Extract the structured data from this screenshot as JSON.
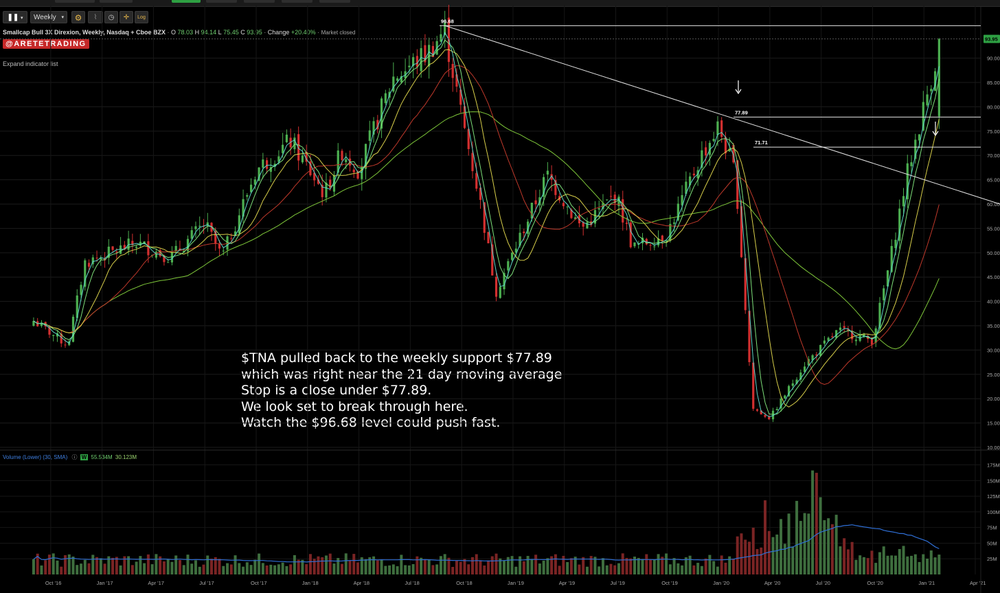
{
  "toolbar": {
    "chart_type_icon": "candlestick-icon",
    "interval": "Weekly",
    "settings_icon": "gear-icon",
    "log_label": "Log"
  },
  "header": {
    "instrument": "Smallcap Bull 3X Direxion, Weekly, Nasdaq + Cboe BZX",
    "open_label": "O",
    "open": "78.03",
    "high_label": "H",
    "high": "94.14",
    "low_label": "L",
    "low": "75.45",
    "close_label": "C",
    "close": "93.95",
    "change_label": "Change",
    "change": "+20.40%",
    "market_status": "Market closed",
    "watermark": "@ARETETRADING",
    "expand_indicators": "Expand indicator list"
  },
  "volume_header": {
    "title": "Volume (Lower) (30, SMA)",
    "badge": "W",
    "value1": "55.534M",
    "value2": "30.123M"
  },
  "annotation": {
    "lines": [
      "$TNA pulled back to the weekly support $77.89",
      "which was right near the 21 day moving average",
      "Stop is a close under $77.89.",
      "We look set to break through here.",
      "Watch the $96.68 level could push fast."
    ]
  },
  "colors": {
    "background": "#000000",
    "up": "#4caf50",
    "down": "#d32f2f",
    "ma_fast": "#5dd3c8",
    "ma_mid": "#7ee07a",
    "ma_yellow": "#d8cf4a",
    "ma_red": "#c0392b",
    "ma_long": "#7fc83a",
    "vol_sma": "#2f6fd6",
    "price_badge": "#2ea043"
  },
  "chart_data": {
    "type": "candlestick",
    "price_axis": {
      "ticks": [
        "10.00",
        "15.00",
        "20.00",
        "25.00",
        "30.00",
        "35.00",
        "40.00",
        "45.00",
        "50.00",
        "55.00",
        "60.00",
        "65.00",
        "70.00",
        "75.00",
        "80.00",
        "85.00",
        "90.00"
      ],
      "range": [
        10,
        98
      ],
      "last_price_badge": "93.95"
    },
    "volume_axis": {
      "ticks": [
        "25M",
        "50M",
        "75M",
        "100M",
        "125M",
        "150M",
        "175M"
      ],
      "range": [
        0,
        180
      ]
    },
    "x_axis_ticks": [
      "Oct '16",
      "Jan '17",
      "Apr '17",
      "Jul '17",
      "Oct '17",
      "Jan '18",
      "Apr '18",
      "Jul '18",
      "Oct '18",
      "Jan '19",
      "Apr '19",
      "Jul '19",
      "Oct '19",
      "Jan '20",
      "Apr '20",
      "Jul '20",
      "Oct '20",
      "Jan '21",
      "Apr '21"
    ],
    "levels": [
      {
        "label": "96.68",
        "value": 96.68
      },
      {
        "label": "77.89",
        "value": 77.89
      },
      {
        "label": "71.71",
        "value": 71.71
      }
    ],
    "trendline": {
      "from": {
        "date": "Sep '18",
        "price": 96.68
      },
      "to": {
        "date": "Apr '21",
        "price": 60.0
      }
    },
    "keypoints": [
      {
        "d": "2016-09",
        "p": 36
      },
      {
        "d": "2016-11",
        "p": 31
      },
      {
        "d": "2016-12",
        "p": 48
      },
      {
        "d": "2017-03",
        "p": 52
      },
      {
        "d": "2017-05",
        "p": 49
      },
      {
        "d": "2017-07",
        "p": 56
      },
      {
        "d": "2017-08",
        "p": 49
      },
      {
        "d": "2017-10",
        "p": 67
      },
      {
        "d": "2017-12",
        "p": 73
      },
      {
        "d": "2018-02",
        "p": 62
      },
      {
        "d": "2018-03",
        "p": 71
      },
      {
        "d": "2018-04",
        "p": 67
      },
      {
        "d": "2018-06",
        "p": 86
      },
      {
        "d": "2018-08",
        "p": 91
      },
      {
        "d": "2018-09",
        "p": 96
      },
      {
        "d": "2018-10",
        "p": 78
      },
      {
        "d": "2018-11",
        "p": 62
      },
      {
        "d": "2018-12",
        "p": 42
      },
      {
        "d": "2019-02",
        "p": 58
      },
      {
        "d": "2019-03",
        "p": 66
      },
      {
        "d": "2019-05",
        "p": 55
      },
      {
        "d": "2019-07",
        "p": 62
      },
      {
        "d": "2019-08",
        "p": 51
      },
      {
        "d": "2019-10",
        "p": 54
      },
      {
        "d": "2019-12",
        "p": 70
      },
      {
        "d": "2020-01",
        "p": 76
      },
      {
        "d": "2020-02",
        "p": 66
      },
      {
        "d": "2020-03",
        "p": 18
      },
      {
        "d": "2020-04",
        "p": 16
      },
      {
        "d": "2020-06",
        "p": 27
      },
      {
        "d": "2020-08",
        "p": 34
      },
      {
        "d": "2020-10",
        "p": 32
      },
      {
        "d": "2020-11",
        "p": 48
      },
      {
        "d": "2020-12",
        "p": 66
      },
      {
        "d": "2021-01",
        "p": 80
      },
      {
        "d": "2021-02",
        "p": 94
      }
    ],
    "series": [
      {
        "name": "Volume",
        "kind": "bars"
      },
      {
        "name": "Volume SMA 30",
        "kind": "line"
      }
    ],
    "title": "Smallcap Bull 3X Direxion, Weekly, Nasdaq + Cboe BZX"
  }
}
